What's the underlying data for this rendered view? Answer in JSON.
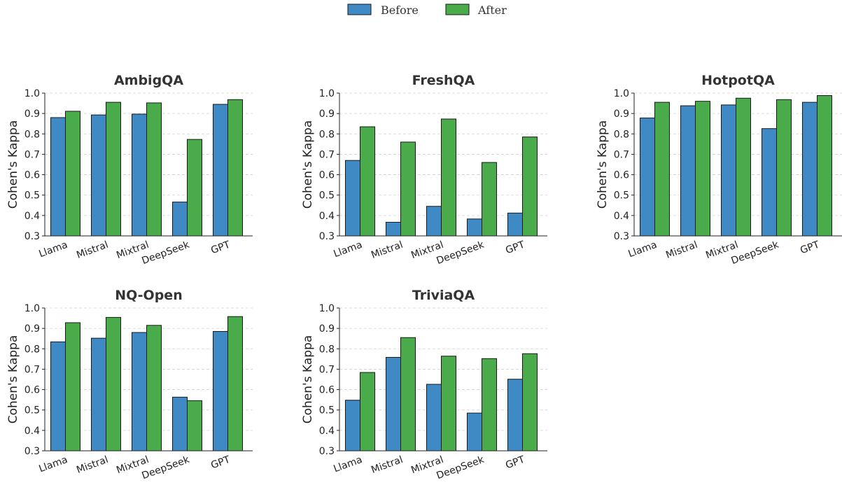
{
  "legend": {
    "items": [
      {
        "label": "Before",
        "color": "#3f8ac4"
      },
      {
        "label": "After",
        "color": "#4aab4a"
      }
    ]
  },
  "chart_data": [
    {
      "type": "bar",
      "title": "AmbigQA",
      "ylabel": "Cohen's Kappa",
      "categories": [
        "Llama",
        "Mistral",
        "Mixtral",
        "DeepSeek",
        "GPT"
      ],
      "series": [
        {
          "name": "Before",
          "values": [
            0.88,
            0.893,
            0.897,
            0.466,
            0.945
          ]
        },
        {
          "name": "After",
          "values": [
            0.911,
            0.955,
            0.952,
            0.773,
            0.968
          ]
        }
      ],
      "ylim": [
        0.3,
        1.0
      ],
      "yticks": [
        "0.3",
        "0.4",
        "0.5",
        "0.6",
        "0.7",
        "0.8",
        "0.9",
        "1.0"
      ],
      "grid": true
    },
    {
      "type": "bar",
      "title": "FreshQA",
      "ylabel": "Cohen's Kappa",
      "categories": [
        "Llama",
        "Mistral",
        "Mixtral",
        "DeepSeek",
        "GPT"
      ],
      "series": [
        {
          "name": "Before",
          "values": [
            0.67,
            0.367,
            0.445,
            0.383,
            0.412
          ]
        },
        {
          "name": "After",
          "values": [
            0.835,
            0.76,
            0.873,
            0.66,
            0.785
          ]
        }
      ],
      "ylim": [
        0.3,
        1.0
      ],
      "yticks": [
        "0.3",
        "0.4",
        "0.5",
        "0.6",
        "0.7",
        "0.8",
        "0.9",
        "1.0"
      ],
      "grid": true
    },
    {
      "type": "bar",
      "title": "HotpotQA",
      "ylabel": "Cohen's Kappa",
      "categories": [
        "Llama",
        "Mistral",
        "Mixtral",
        "DeepSeek",
        "GPT"
      ],
      "series": [
        {
          "name": "Before",
          "values": [
            0.878,
            0.938,
            0.942,
            0.826,
            0.955
          ]
        },
        {
          "name": "After",
          "values": [
            0.955,
            0.96,
            0.975,
            0.968,
            0.988
          ]
        }
      ],
      "ylim": [
        0.3,
        1.0
      ],
      "yticks": [
        "0.3",
        "0.4",
        "0.5",
        "0.6",
        "0.7",
        "0.8",
        "0.9",
        "1.0"
      ],
      "grid": true
    },
    {
      "type": "bar",
      "title": "NQ-Open",
      "ylabel": "Cohen's Kappa",
      "categories": [
        "Llama",
        "Mistral",
        "Mixtral",
        "DeepSeek",
        "GPT"
      ],
      "series": [
        {
          "name": "Before",
          "values": [
            0.834,
            0.852,
            0.88,
            0.563,
            0.885
          ]
        },
        {
          "name": "After",
          "values": [
            0.928,
            0.954,
            0.915,
            0.546,
            0.958
          ]
        }
      ],
      "ylim": [
        0.3,
        1.0
      ],
      "yticks": [
        "0.3",
        "0.4",
        "0.5",
        "0.6",
        "0.7",
        "0.8",
        "0.9",
        "1.0"
      ],
      "grid": true
    },
    {
      "type": "bar",
      "title": "TriviaQA",
      "ylabel": "Cohen's Kappa",
      "categories": [
        "Llama",
        "Mistral",
        "Mixtral",
        "DeepSeek",
        "GPT"
      ],
      "series": [
        {
          "name": "Before",
          "values": [
            0.548,
            0.758,
            0.626,
            0.485,
            0.651
          ]
        },
        {
          "name": "After",
          "values": [
            0.684,
            0.855,
            0.764,
            0.752,
            0.776
          ]
        }
      ],
      "ylim": [
        0.3,
        1.0
      ],
      "yticks": [
        "0.3",
        "0.4",
        "0.5",
        "0.6",
        "0.7",
        "0.8",
        "0.9",
        "1.0"
      ],
      "grid": true
    }
  ]
}
